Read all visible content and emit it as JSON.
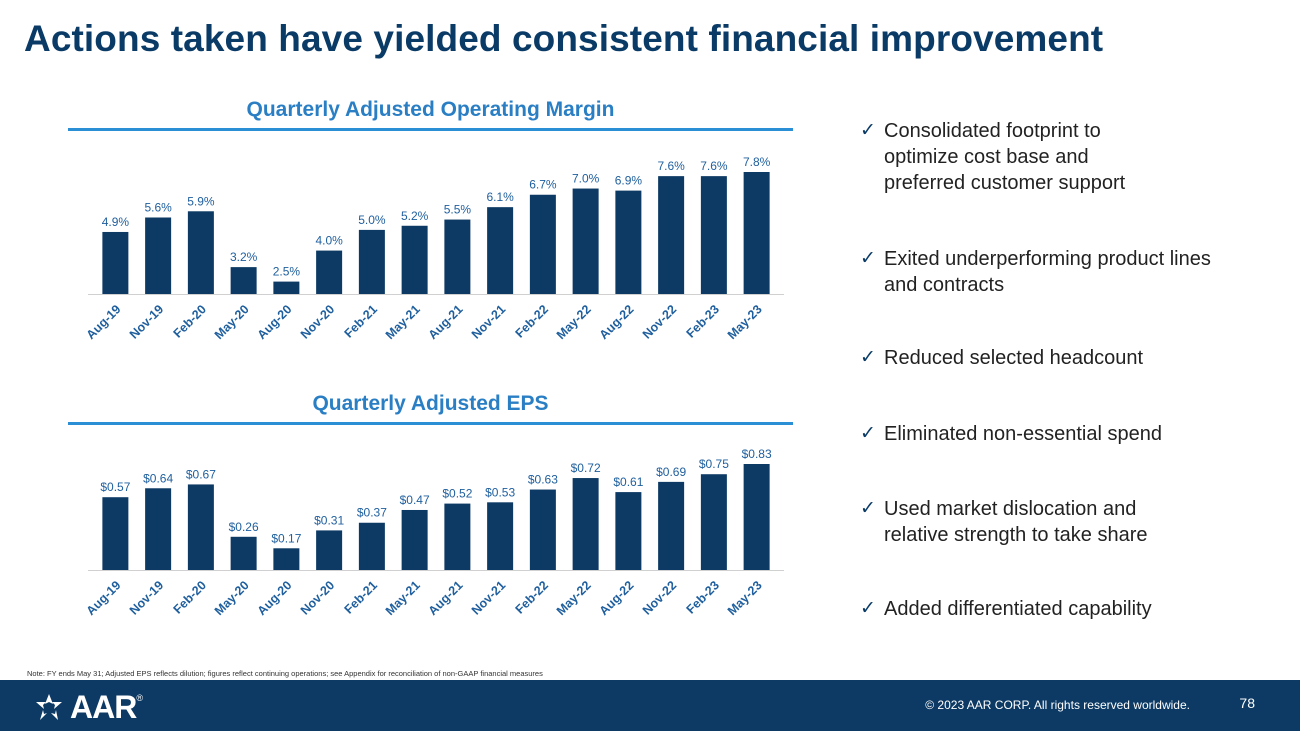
{
  "title": "Actions taken have yielded consistent financial improvement",
  "chart_data": [
    {
      "type": "bar",
      "title": "Quarterly Adjusted Operating Margin",
      "categories": [
        "Aug-19",
        "Nov-19",
        "Feb-20",
        "May-20",
        "Aug-20",
        "Nov-20",
        "Feb-21",
        "May-21",
        "Aug-21",
        "Nov-21",
        "Feb-22",
        "May-22",
        "Aug-22",
        "Nov-22",
        "Feb-23",
        "May-23"
      ],
      "values": [
        4.9,
        5.6,
        5.9,
        3.2,
        2.5,
        4.0,
        5.0,
        5.2,
        5.5,
        6.1,
        6.7,
        7.0,
        6.9,
        7.6,
        7.6,
        7.8
      ],
      "labels": [
        "4.9%",
        "5.6%",
        "5.9%",
        "3.2%",
        "2.5%",
        "4.0%",
        "5.0%",
        "5.2%",
        "5.5%",
        "6.1%",
        "6.7%",
        "7.0%",
        "6.9%",
        "7.6%",
        "7.6%",
        "7.8%"
      ],
      "unit": "%",
      "ylim": [
        1.9,
        7.8
      ],
      "xlabel": "",
      "ylabel": "",
      "color": "#0d3a64",
      "label_color": "#1f5f9e"
    },
    {
      "type": "bar",
      "title": "Quarterly Adjusted EPS",
      "categories": [
        "Aug-19",
        "Nov-19",
        "Feb-20",
        "May-20",
        "Aug-20",
        "Nov-20",
        "Feb-21",
        "May-21",
        "Aug-21",
        "Nov-21",
        "Feb-22",
        "May-22",
        "Aug-22",
        "Nov-22",
        "Feb-23",
        "May-23"
      ],
      "values": [
        0.57,
        0.64,
        0.67,
        0.26,
        0.17,
        0.31,
        0.37,
        0.47,
        0.52,
        0.53,
        0.63,
        0.72,
        0.61,
        0.69,
        0.75,
        0.83
      ],
      "labels": [
        "$0.57",
        "$0.64",
        "$0.67",
        "$0.26",
        "$0.17",
        "$0.31",
        "$0.37",
        "$0.47",
        "$0.52",
        "$0.53",
        "$0.63",
        "$0.72",
        "$0.61",
        "$0.69",
        "$0.75",
        "$0.83"
      ],
      "unit": "$",
      "ylim": [
        0,
        0.83
      ],
      "xlabel": "",
      "ylabel": "",
      "color": "#0d3a64",
      "label_color": "#1f5f9e"
    }
  ],
  "bullets": [
    {
      "check": "✓",
      "text": "Consolidated footprint to optimize cost base and preferred customer support"
    },
    {
      "check": "✓",
      "text": "Exited underperforming product lines and contracts"
    },
    {
      "check": "✓",
      "text": "Reduced selected headcount"
    },
    {
      "check": "✓",
      "text": "Eliminated non-essential spend"
    },
    {
      "check": "✓",
      "text": "Used market dislocation and relative strength to take share"
    },
    {
      "check": "✓",
      "text": "Added differentiated capability"
    }
  ],
  "note": "Note: FY ends May 31; Adjusted EPS reflects dilution; figures reflect continuing operations; see Appendix for reconciliation of non-GAAP financial measures",
  "footer": {
    "logo_text": "AAR",
    "logo_reg": "®",
    "copyright": "© 2023 AAR CORP. All rights reserved worldwide.",
    "page_number": "78",
    "background": "#0d3a64"
  }
}
